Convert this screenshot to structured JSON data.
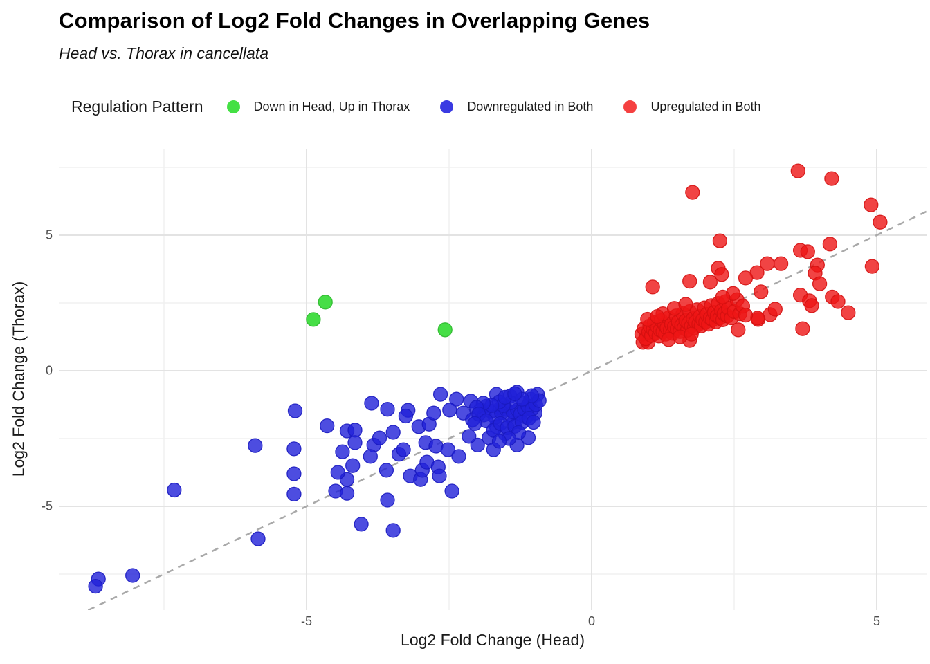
{
  "title": "Comparison of Log2 Fold Changes in Overlapping Genes",
  "subtitle": "Head vs. Thorax in cancellata",
  "legend": {
    "title": "Regulation Pattern",
    "items": [
      {
        "label": "Down in Head, Up in Thorax",
        "color": "#44e044"
      },
      {
        "label": "Downregulated in Both",
        "color": "#3a3ae2"
      },
      {
        "label": "Upregulated in Both",
        "color": "#f54040"
      }
    ]
  },
  "axes": {
    "x_title": "Log2 Fold Change (Head)",
    "y_title": "Log2 Fold Change (Thorax)",
    "x_tick_labels": [
      "-5",
      "0",
      "5"
    ],
    "y_tick_labels": [
      "5",
      "0",
      "-5"
    ]
  },
  "chart_data": {
    "type": "scatter",
    "title": "Comparison of Log2 Fold Changes in Overlapping Genes",
    "subtitle": "Head vs. Thorax in cancellata",
    "xlabel": "Log2 Fold Change (Head)",
    "ylabel": "Log2 Fold Change (Thorax)",
    "xlim": [
      -9.34,
      5.87
    ],
    "ylim": [
      -8.83,
      8.19
    ],
    "x_ticks": [
      -5,
      0,
      5
    ],
    "y_ticks": [
      -5,
      0,
      5
    ],
    "x_minor_ticks": [
      -7.5,
      -2.5,
      2.5
    ],
    "y_minor_ticks": [
      -7.5,
      -2.5,
      2.5,
      7.5
    ],
    "grid": true,
    "legend_position": "top",
    "reference_line": {
      "kind": "identity y=x",
      "style": "dashed",
      "color": "#a9a9a9"
    },
    "colors": {
      "major_grid": "#e3e3e3",
      "minor_grid": "#f0f0f0",
      "tick_text": "#4d4d4d"
    },
    "series": [
      {
        "name": "Down in Head, Up in Thorax",
        "fill": "#3cdc3c",
        "stroke": "#2cb82c",
        "opacity": 0.95,
        "points": [
          [
            -4.67,
            2.53
          ],
          [
            -4.88,
            1.89
          ],
          [
            -2.57,
            1.51
          ]
        ]
      },
      {
        "name": "Downregulated in Both",
        "fill": "#2121d8",
        "stroke": "#1a1ac0",
        "opacity": 0.8,
        "points": [
          [
            -8.65,
            -7.68
          ],
          [
            -8.7,
            -7.95
          ],
          [
            -8.05,
            -7.55
          ],
          [
            -7.32,
            -4.4
          ],
          [
            -5.9,
            -2.76
          ],
          [
            -5.85,
            -6.2
          ],
          [
            -5.2,
            -1.48
          ],
          [
            -5.22,
            -2.88
          ],
          [
            -5.22,
            -3.8
          ],
          [
            -5.22,
            -4.55
          ],
          [
            -4.04,
            -5.66
          ],
          [
            -3.48,
            -5.89
          ],
          [
            -3.58,
            -4.77
          ],
          [
            -2.45,
            -4.44
          ],
          [
            -4.49,
            -4.44
          ],
          [
            -4.29,
            -4.52
          ],
          [
            -4.29,
            -4.01
          ],
          [
            -4.45,
            -3.75
          ],
          [
            -4.19,
            -3.5
          ],
          [
            -4.37,
            -2.99
          ],
          [
            -4.64,
            -2.03
          ],
          [
            -4.29,
            -2.22
          ],
          [
            -4.15,
            -2.19
          ],
          [
            -4.15,
            -2.65
          ],
          [
            -3.86,
            -1.2
          ],
          [
            -3.58,
            -1.42
          ],
          [
            -3.82,
            -2.74
          ],
          [
            -3.88,
            -3.16
          ],
          [
            -3.72,
            -2.48
          ],
          [
            -3.48,
            -2.27
          ],
          [
            -3.6,
            -3.67
          ],
          [
            -3.38,
            -3.08
          ],
          [
            -3.3,
            -2.91
          ],
          [
            -3.18,
            -3.88
          ],
          [
            -3.0,
            -4.01
          ],
          [
            -2.97,
            -3.67
          ],
          [
            -2.89,
            -3.37
          ],
          [
            -2.69,
            -3.55
          ],
          [
            -2.67,
            -3.88
          ],
          [
            -3.22,
            -1.46
          ],
          [
            -3.26,
            -1.67
          ],
          [
            -3.03,
            -2.06
          ],
          [
            -2.85,
            -1.97
          ],
          [
            -2.91,
            -2.65
          ],
          [
            -2.73,
            -2.78
          ],
          [
            -2.52,
            -2.91
          ],
          [
            -2.33,
            -3.16
          ],
          [
            -2.65,
            -0.87
          ],
          [
            -2.37,
            -1.05
          ],
          [
            -2.12,
            -1.12
          ],
          [
            -2.77,
            -1.56
          ],
          [
            -2.49,
            -1.45
          ],
          [
            -2.25,
            -1.56
          ],
          [
            -2.09,
            -1.81
          ],
          [
            -1.84,
            -1.3
          ],
          [
            -1.67,
            -0.87
          ],
          [
            -1.6,
            -1.38
          ],
          [
            -1.43,
            -0.94
          ],
          [
            -1.31,
            -0.79
          ],
          [
            -1.19,
            -1.2
          ],
          [
            -1.07,
            -1.05
          ],
          [
            -0.95,
            -0.87
          ],
          [
            -0.99,
            -1.56
          ],
          [
            -1.15,
            -1.71
          ],
          [
            -1.36,
            -1.89
          ],
          [
            -1.67,
            -2.06
          ],
          [
            -1.52,
            -2.32
          ],
          [
            -1.8,
            -2.47
          ],
          [
            -2.0,
            -2.74
          ],
          [
            -1.72,
            -2.91
          ],
          [
            -1.31,
            -2.74
          ],
          [
            -1.11,
            -2.47
          ],
          [
            -1.95,
            -1.45
          ],
          [
            -1.88,
            -1.62
          ],
          [
            -1.76,
            -1.5
          ],
          [
            -1.69,
            -1.72
          ],
          [
            -1.58,
            -1.55
          ],
          [
            -1.5,
            -1.42
          ],
          [
            -1.45,
            -1.65
          ],
          [
            -1.38,
            -1.52
          ],
          [
            -1.3,
            -1.45
          ],
          [
            -1.25,
            -1.6
          ],
          [
            -1.18,
            -1.42
          ],
          [
            -1.12,
            -1.3
          ],
          [
            -1.05,
            -1.42
          ],
          [
            -0.98,
            -1.25
          ],
          [
            -1.42,
            -1.18
          ],
          [
            -1.55,
            -1.28
          ],
          [
            -1.62,
            -1.15
          ],
          [
            -1.75,
            -1.28
          ],
          [
            -1.9,
            -1.2
          ],
          [
            -2.02,
            -1.35
          ],
          [
            -1.98,
            -1.6
          ],
          [
            -1.85,
            -1.85
          ],
          [
            -1.72,
            -2.2
          ],
          [
            -1.6,
            -1.95
          ],
          [
            -1.48,
            -2.1
          ],
          [
            -1.35,
            -2.05
          ],
          [
            -1.22,
            -1.9
          ],
          [
            -1.1,
            -1.75
          ],
          [
            -1.02,
            -1.9
          ],
          [
            -1.28,
            -2.28
          ],
          [
            -1.45,
            -2.5
          ],
          [
            -1.62,
            -2.6
          ],
          [
            -0.92,
            -1.1
          ],
          [
            -1.05,
            -0.92
          ],
          [
            -1.22,
            -1.05
          ],
          [
            -1.52,
            -0.98
          ],
          [
            -1.35,
            -0.85
          ],
          [
            -2.05,
            -1.95
          ],
          [
            -2.15,
            -2.42
          ]
        ]
      },
      {
        "name": "Upregulated in Both",
        "fill": "#ee1515",
        "stroke": "#d40f0f",
        "opacity": 0.8,
        "points": [
          [
            3.62,
            7.37
          ],
          [
            4.21,
            7.09
          ],
          [
            1.77,
            6.58
          ],
          [
            4.9,
            6.12
          ],
          [
            5.06,
            5.48
          ],
          [
            2.25,
            4.79
          ],
          [
            4.18,
            4.67
          ],
          [
            3.66,
            4.44
          ],
          [
            3.79,
            4.39
          ],
          [
            3.96,
            3.9
          ],
          [
            4.92,
            3.85
          ],
          [
            3.32,
            3.95
          ],
          [
            3.08,
            3.95
          ],
          [
            2.9,
            3.62
          ],
          [
            2.7,
            3.42
          ],
          [
            2.22,
            3.78
          ],
          [
            2.28,
            3.55
          ],
          [
            2.08,
            3.27
          ],
          [
            1.72,
            3.3
          ],
          [
            1.07,
            3.09
          ],
          [
            3.92,
            3.6
          ],
          [
            4.0,
            3.21
          ],
          [
            3.66,
            2.79
          ],
          [
            3.82,
            2.58
          ],
          [
            3.86,
            2.4
          ],
          [
            4.22,
            2.72
          ],
          [
            4.32,
            2.55
          ],
          [
            4.5,
            2.14
          ],
          [
            3.7,
            1.55
          ],
          [
            3.13,
            2.07
          ],
          [
            3.22,
            2.27
          ],
          [
            2.92,
            1.89
          ],
          [
            2.97,
            2.91
          ],
          [
            2.57,
            1.51
          ],
          [
            2.91,
            1.94
          ],
          [
            0.9,
            1.05
          ],
          [
            0.99,
            1.05
          ],
          [
            1.72,
            1.12
          ],
          [
            0.88,
            1.35
          ],
          [
            0.92,
            1.55
          ],
          [
            0.95,
            1.18
          ],
          [
            1.0,
            1.42
          ],
          [
            1.02,
            1.65
          ],
          [
            1.05,
            1.3
          ],
          [
            1.08,
            1.52
          ],
          [
            1.1,
            1.78
          ],
          [
            1.12,
            1.4
          ],
          [
            1.15,
            1.62
          ],
          [
            1.18,
            1.28
          ],
          [
            1.2,
            1.5
          ],
          [
            1.22,
            1.85
          ],
          [
            1.25,
            1.45
          ],
          [
            1.28,
            1.7
          ],
          [
            1.3,
            1.35
          ],
          [
            1.32,
            1.58
          ],
          [
            1.35,
            1.95
          ],
          [
            1.38,
            1.5
          ],
          [
            1.4,
            1.72
          ],
          [
            1.42,
            1.38
          ],
          [
            1.45,
            1.62
          ],
          [
            1.48,
            2.02
          ],
          [
            1.5,
            1.55
          ],
          [
            1.52,
            1.8
          ],
          [
            1.55,
            1.45
          ],
          [
            1.58,
            1.68
          ],
          [
            1.6,
            2.1
          ],
          [
            1.62,
            1.58
          ],
          [
            1.65,
            1.85
          ],
          [
            1.68,
            1.5
          ],
          [
            1.7,
            1.75
          ],
          [
            1.72,
            2.18
          ],
          [
            1.75,
            1.65
          ],
          [
            1.78,
            1.92
          ],
          [
            1.8,
            1.58
          ],
          [
            1.82,
            1.8
          ],
          [
            1.85,
            2.25
          ],
          [
            1.88,
            1.72
          ],
          [
            1.9,
            2.0
          ],
          [
            1.92,
            1.65
          ],
          [
            1.95,
            1.88
          ],
          [
            1.98,
            2.32
          ],
          [
            2.0,
            1.8
          ],
          [
            2.02,
            2.08
          ],
          [
            2.05,
            1.72
          ],
          [
            2.08,
            1.95
          ],
          [
            2.1,
            2.4
          ],
          [
            2.12,
            1.88
          ],
          [
            2.15,
            2.15
          ],
          [
            2.18,
            1.8
          ],
          [
            2.2,
            2.02
          ],
          [
            2.22,
            2.48
          ],
          [
            2.25,
            1.95
          ],
          [
            2.28,
            2.22
          ],
          [
            2.3,
            1.88
          ],
          [
            2.32,
            2.1
          ],
          [
            2.35,
            2.55
          ],
          [
            2.38,
            2.02
          ],
          [
            2.4,
            2.3
          ],
          [
            2.45,
            1.95
          ],
          [
            2.5,
            2.18
          ],
          [
            2.55,
            2.62
          ],
          [
            2.6,
            2.1
          ],
          [
            2.65,
            2.38
          ],
          [
            2.7,
            2.05
          ],
          [
            2.48,
            2.85
          ],
          [
            1.35,
            1.15
          ],
          [
            1.55,
            1.25
          ],
          [
            1.75,
            1.35
          ],
          [
            0.98,
            1.9
          ],
          [
            1.25,
            2.1
          ],
          [
            1.45,
            2.3
          ],
          [
            1.65,
            2.45
          ],
          [
            2.3,
            2.72
          ],
          [
            1.15,
            2.0
          ]
        ]
      }
    ]
  }
}
